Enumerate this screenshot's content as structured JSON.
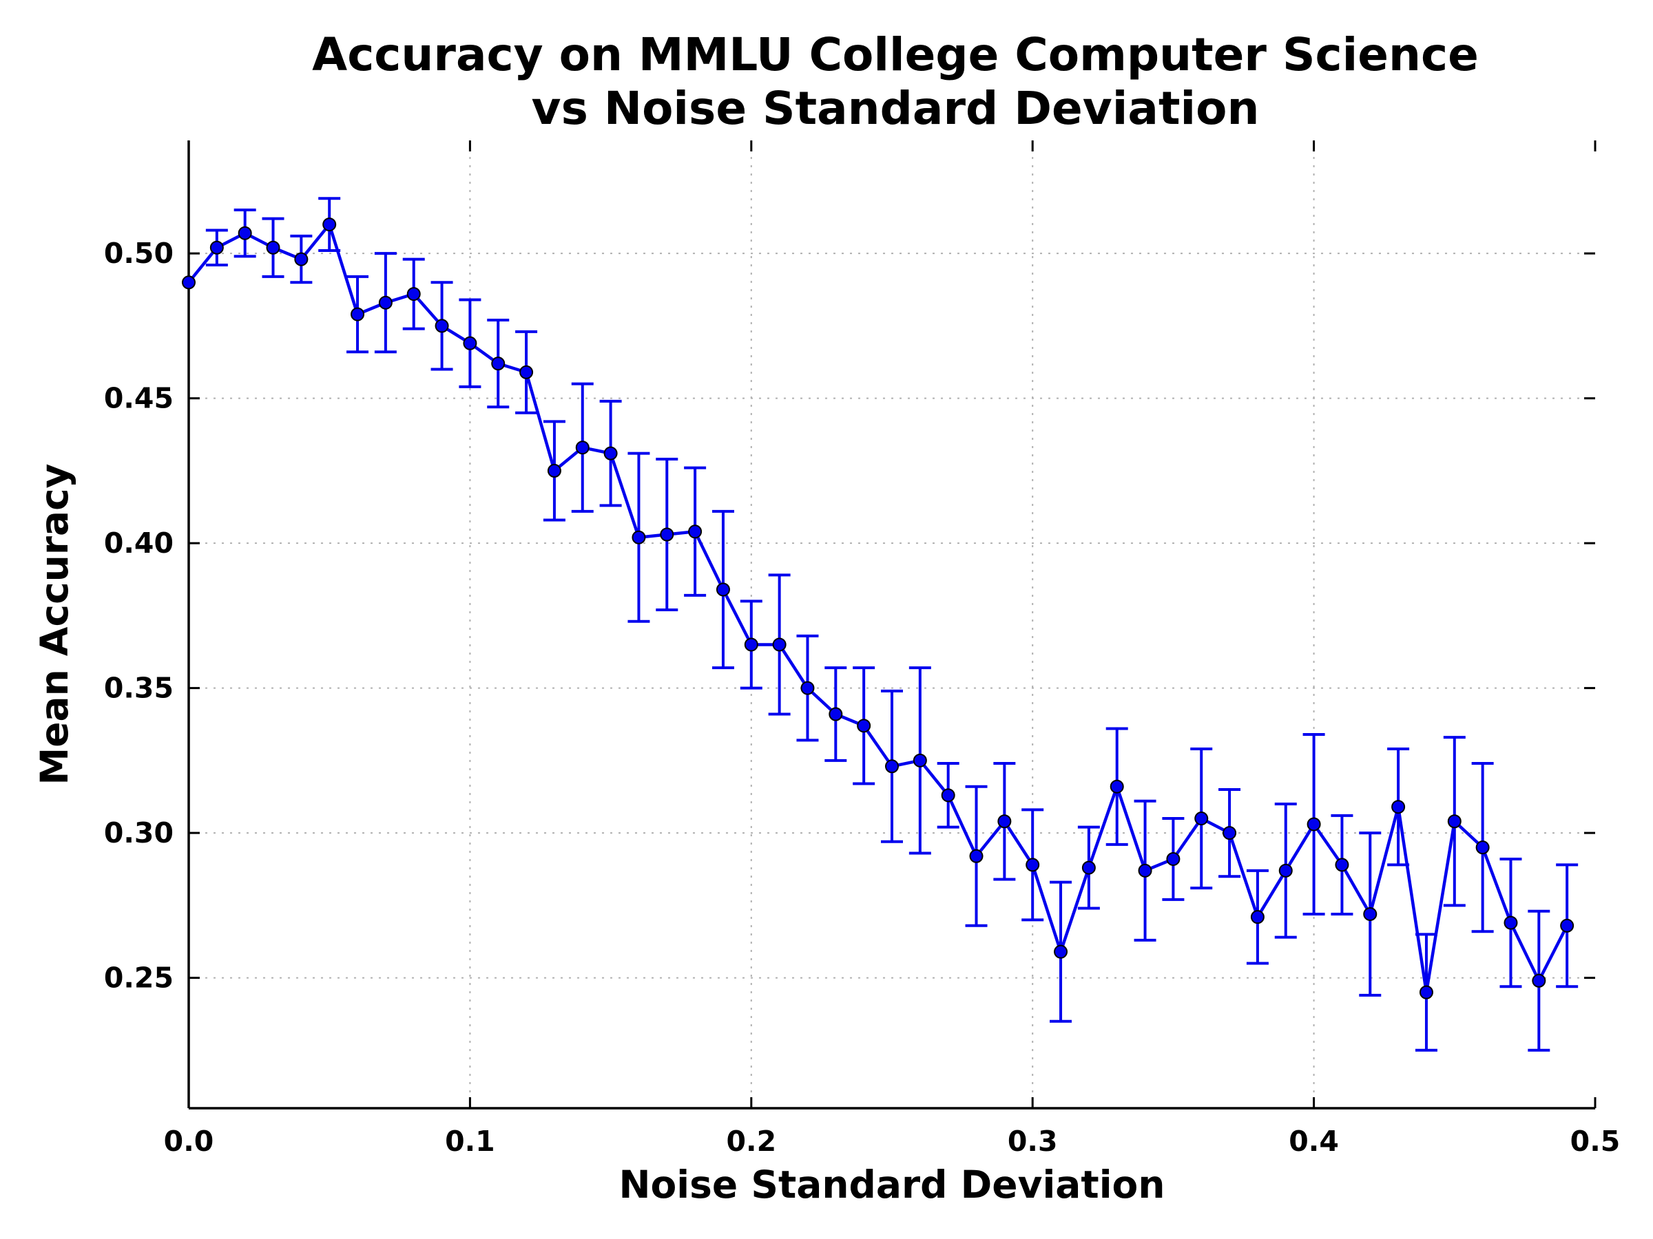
{
  "chart_data": {
    "type": "line",
    "title": [
      "Accuracy on MMLU College Computer Science",
      "vs Noise Standard Deviation"
    ],
    "xlabel": "Noise Standard Deviation",
    "ylabel": "Mean Accuracy",
    "xlim": [
      0.0,
      0.5
    ],
    "ylim": [
      0.205,
      0.539
    ],
    "x_ticks": [
      0.0,
      0.1,
      0.2,
      0.3,
      0.4,
      0.5
    ],
    "x_tick_labels": [
      "0.0",
      "0.1",
      "0.2",
      "0.3",
      "0.4",
      "0.5"
    ],
    "y_ticks": [
      0.25,
      0.3,
      0.35,
      0.4,
      0.45,
      0.5
    ],
    "y_tick_labels": [
      "0.25",
      "0.30",
      "0.35",
      "0.40",
      "0.45",
      "0.50"
    ],
    "grid": true,
    "series_color": "#0000ee",
    "series": [
      {
        "x": [
          0.0,
          0.01,
          0.02,
          0.03,
          0.04,
          0.05,
          0.06,
          0.07,
          0.08,
          0.09,
          0.1,
          0.11,
          0.12,
          0.13,
          0.14,
          0.15,
          0.16,
          0.17,
          0.18,
          0.19,
          0.2,
          0.21,
          0.22,
          0.23,
          0.24,
          0.25,
          0.26,
          0.27,
          0.28,
          0.29,
          0.3,
          0.31,
          0.32,
          0.33,
          0.34,
          0.35,
          0.36,
          0.37,
          0.38,
          0.39,
          0.4,
          0.41,
          0.42,
          0.43,
          0.44,
          0.45,
          0.46,
          0.47,
          0.48,
          0.49
        ],
        "y": [
          0.49,
          0.502,
          0.507,
          0.502,
          0.498,
          0.51,
          0.479,
          0.483,
          0.486,
          0.475,
          0.469,
          0.462,
          0.459,
          0.425,
          0.433,
          0.431,
          0.402,
          0.403,
          0.404,
          0.384,
          0.365,
          0.365,
          0.35,
          0.341,
          0.337,
          0.323,
          0.325,
          0.313,
          0.292,
          0.304,
          0.289,
          0.259,
          0.288,
          0.316,
          0.287,
          0.291,
          0.305,
          0.3,
          0.271,
          0.287,
          0.303,
          0.289,
          0.272,
          0.309,
          0.245,
          0.304,
          0.295,
          0.269,
          0.249,
          0.268
        ],
        "err": [
          0.0,
          0.006,
          0.008,
          0.01,
          0.008,
          0.009,
          0.013,
          0.017,
          0.012,
          0.015,
          0.015,
          0.015,
          0.014,
          0.017,
          0.022,
          0.018,
          0.029,
          0.026,
          0.022,
          0.027,
          0.015,
          0.024,
          0.018,
          0.016,
          0.02,
          0.026,
          0.032,
          0.011,
          0.024,
          0.02,
          0.019,
          0.024,
          0.014,
          0.02,
          0.024,
          0.014,
          0.024,
          0.015,
          0.016,
          0.023,
          0.031,
          0.017,
          0.028,
          0.02,
          0.02,
          0.029,
          0.029,
          0.022,
          0.024,
          0.021
        ]
      }
    ]
  }
}
